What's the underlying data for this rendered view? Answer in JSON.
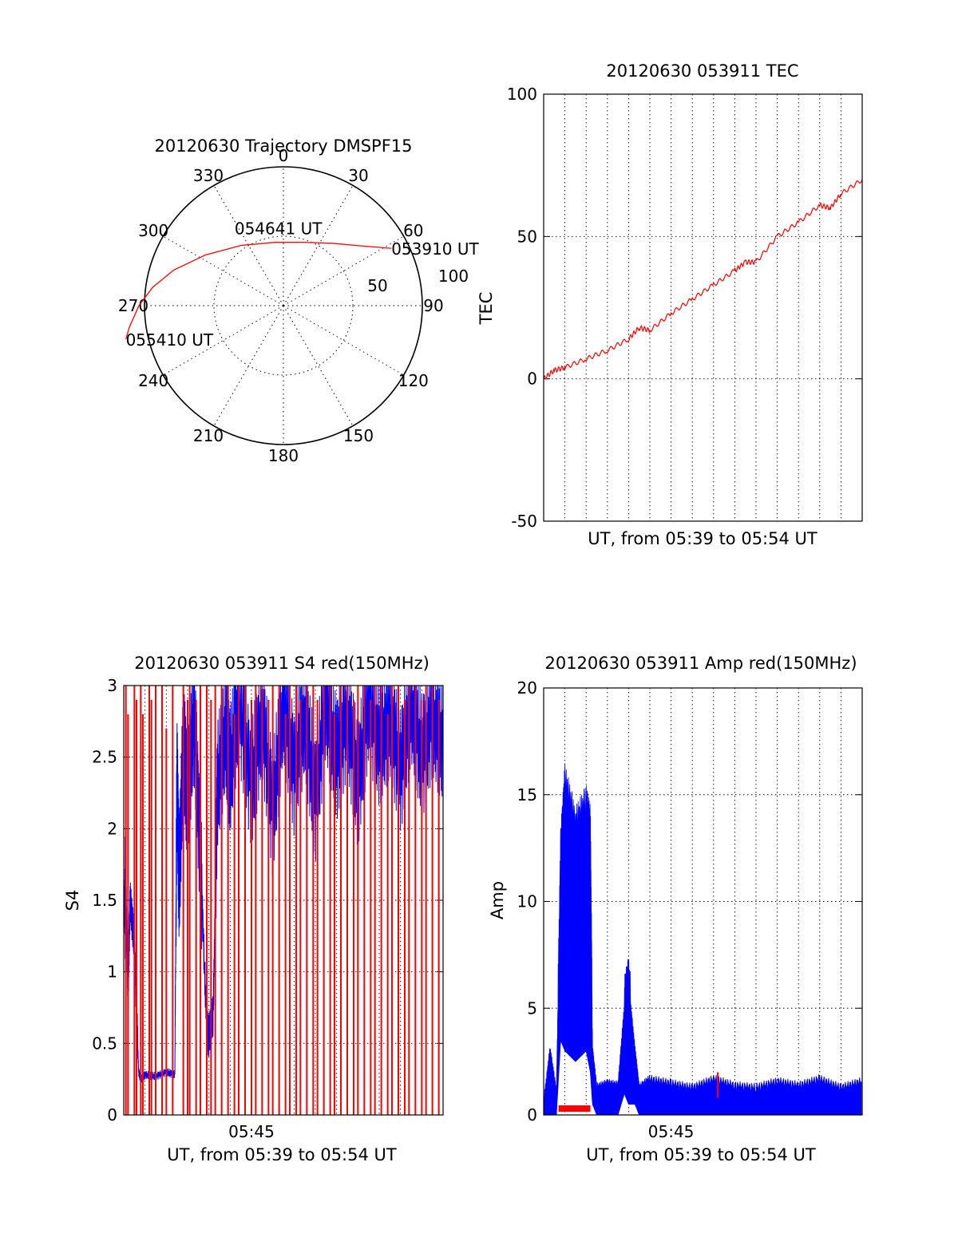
{
  "chart_data": [
    {
      "type": "polar",
      "title": "20120630 Trajectory DMSPF15",
      "azimuth_labels": [
        "0",
        "30",
        "60",
        "90",
        "120",
        "150",
        "180",
        "210",
        "240",
        "270",
        "300",
        "330"
      ],
      "radial_labels": [
        "50",
        "100"
      ],
      "rlim": [
        0,
        100
      ],
      "grid": true,
      "series": [
        {
          "color": "#ff0000",
          "points": [
            {
              "az": 62,
              "r": 88
            },
            {
              "az": 52,
              "r": 70
            },
            {
              "az": 38,
              "r": 57
            },
            {
              "az": 18,
              "r": 48
            },
            {
              "az": 352,
              "r": 46
            },
            {
              "az": 325,
              "r": 53
            },
            {
              "az": 303,
              "r": 67
            },
            {
              "az": 288,
              "r": 83
            },
            {
              "az": 278,
              "r": 95
            },
            {
              "az": 270,
              "r": 104
            },
            {
              "az": 262,
              "r": 112
            },
            {
              "az": 258,
              "r": 116
            }
          ]
        }
      ],
      "annotations": [
        {
          "text": "053910 UT",
          "az": 62,
          "r": 88
        },
        {
          "text": "054641 UT",
          "az": 352,
          "r": 46
        },
        {
          "text": "055410 UT",
          "az": 258,
          "r": 116
        }
      ]
    },
    {
      "type": "line",
      "title": "20120630 053911 TEC",
      "xlabel": "UT, from 05:39 to 05:54 UT",
      "ylabel": "TEC",
      "xlim": [
        0,
        15
      ],
      "ylim": [
        -50,
        100
      ],
      "yticks": [
        -50,
        0,
        50,
        100
      ],
      "grid": true,
      "series": [
        {
          "color": "#ff0000",
          "x": [
            0,
            0.5,
            1,
            2,
            3,
            4,
            4.5,
            5,
            6,
            7,
            8,
            9,
            9.5,
            10,
            11,
            12,
            13,
            13.5,
            14,
            15
          ],
          "y": [
            0,
            3,
            4,
            7,
            10,
            14,
            18,
            17,
            23,
            28,
            33,
            38,
            41,
            41,
            50,
            55,
            61,
            60,
            65,
            70
          ]
        }
      ]
    },
    {
      "type": "line",
      "title": "20120630 053911 S4 red(150MHz)",
      "xlabel": "UT, from 05:39 to 05:54 UT",
      "ylabel": "S4",
      "xlim": [
        0,
        15
      ],
      "ylim": [
        0,
        3
      ],
      "yticks": [
        0,
        0.5,
        1,
        1.5,
        2,
        2.5,
        3
      ],
      "xticks": [
        {
          "value": 6,
          "label": "05:45"
        }
      ],
      "grid": true,
      "series": [
        {
          "color": "#ff0000",
          "segments": [
            [
              0.1,
              3.0
            ],
            [
              0.2,
              2.8
            ],
            [
              0.5,
              3.0
            ],
            [
              0.6,
              2.9
            ],
            [
              0.8,
              3.0
            ],
            [
              0.9,
              2.8
            ],
            [
              1.2,
              3.0
            ],
            [
              1.3,
              2.9
            ],
            [
              1.5,
              3.0
            ],
            [
              1.8,
              3.0
            ],
            [
              2.0,
              2.7
            ],
            [
              2.3,
              3.0
            ],
            [
              2.8,
              3.0
            ],
            [
              3.0,
              2.9
            ],
            [
              3.1,
              3.0
            ],
            [
              3.4,
              2.9
            ],
            [
              3.6,
              3.0
            ],
            [
              3.9,
              3.0
            ],
            [
              4.1,
              2.9
            ],
            [
              4.3,
              3.0
            ],
            [
              4.6,
              3.0
            ],
            [
              4.9,
              3.0
            ],
            [
              5.2,
              2.8
            ],
            [
              5.4,
              3.0
            ],
            [
              5.7,
              3.0
            ],
            [
              6.0,
              2.9
            ],
            [
              6.2,
              3.0
            ],
            [
              6.5,
              3.0
            ],
            [
              6.8,
              2.9
            ],
            [
              7.0,
              3.0
            ],
            [
              7.3,
              3.0
            ],
            [
              7.6,
              2.8
            ],
            [
              7.8,
              3.0
            ],
            [
              8.1,
              3.0
            ],
            [
              8.3,
              2.9
            ],
            [
              8.6,
              3.0
            ],
            [
              8.9,
              3.0
            ],
            [
              9.1,
              2.9
            ],
            [
              9.4,
              3.0
            ],
            [
              9.7,
              3.0
            ],
            [
              9.9,
              2.8
            ],
            [
              10.2,
              3.0
            ],
            [
              10.5,
              3.0
            ],
            [
              10.8,
              2.9
            ],
            [
              11.0,
              3.0
            ],
            [
              11.3,
              3.0
            ],
            [
              11.6,
              2.9
            ],
            [
              11.8,
              3.0
            ],
            [
              12.1,
              3.0
            ],
            [
              12.4,
              2.8
            ],
            [
              12.6,
              3.0
            ],
            [
              12.9,
              3.0
            ],
            [
              13.2,
              2.9
            ],
            [
              13.4,
              3.0
            ],
            [
              13.7,
              3.0
            ],
            [
              14.0,
              2.9
            ],
            [
              14.2,
              3.0
            ],
            [
              14.5,
              3.0
            ],
            [
              14.8,
              2.9
            ]
          ]
        },
        {
          "color": "#0000ff",
          "x": [
            0,
            0.1,
            0.2,
            0.3,
            0.5,
            0.7,
            0.8,
            1.0,
            1.5,
            2.0,
            2.4,
            2.5,
            2.6,
            2.8,
            3.0,
            3.3,
            3.6,
            3.9,
            4.0,
            4.2,
            4.4,
            4.8,
            5.0,
            5.4,
            6.0,
            6.5,
            7.0,
            7.5,
            8.0,
            8.5,
            9.0,
            9.5,
            10.0,
            10.5,
            11.0,
            11.5,
            12.0,
            12.5,
            13.0,
            13.5,
            14.0,
            14.5,
            15.0
          ],
          "y": [
            1.4,
            1.6,
            0.8,
            1.5,
            1.2,
            0.3,
            0.25,
            0.28,
            0.27,
            0.3,
            0.28,
            2.4,
            1.6,
            2.6,
            2.2,
            2.8,
            1.8,
            0.6,
            0.55,
            0.7,
            2.3,
            2.7,
            2.4,
            2.9,
            2.3,
            2.8,
            2.1,
            2.9,
            2.4,
            2.8,
            2.2,
            2.9,
            2.5,
            2.8,
            2.3,
            2.9,
            2.6,
            2.8,
            2.4,
            2.9,
            2.5,
            2.8,
            2.6
          ]
        }
      ]
    },
    {
      "type": "line",
      "title": "20120630 053911 Amp red(150MHz)",
      "xlabel": "UT, from 05:39 to 05:54 UT",
      "ylabel": "Amp",
      "xlim": [
        0,
        15
      ],
      "ylim": [
        0,
        20
      ],
      "yticks": [
        0,
        5,
        10,
        15,
        20
      ],
      "xticks": [
        {
          "value": 6,
          "label": "05:45"
        }
      ],
      "grid": true,
      "series": [
        {
          "color": "#0000ff",
          "x": [
            0,
            0.3,
            0.6,
            0.8,
            1.0,
            1.5,
            2.0,
            2.2,
            2.3,
            2.5,
            3.0,
            3.5,
            3.8,
            4.0,
            4.3,
            4.5,
            5.0,
            6.0,
            7.0,
            8.0,
            9.0,
            10.0,
            11.0,
            12.0,
            13.0,
            14.0,
            15.0
          ],
          "y": [
            0.5,
            3.0,
            1.0,
            12.0,
            15.0,
            13.0,
            14.0,
            13.0,
            3.0,
            1.2,
            1.4,
            1.3,
            5.0,
            6.0,
            3.0,
            1.2,
            1.6,
            1.4,
            1.2,
            1.6,
            1.3,
            1.2,
            1.5,
            1.3,
            1.6,
            1.2,
            1.5
          ],
          "band_low": [
            0,
            0,
            0,
            3.5,
            3.0,
            2.5,
            3.0,
            2.0,
            0.5,
            0,
            0,
            0,
            1.0,
            0.5,
            0.5,
            0,
            0,
            0,
            0,
            0,
            0,
            0,
            0,
            0,
            0,
            0,
            0
          ]
        },
        {
          "color": "#ff0000",
          "x": [
            0.7,
            2.2,
            8.2
          ],
          "y": [
            0.3,
            0.3,
            2.0
          ]
        }
      ]
    }
  ]
}
